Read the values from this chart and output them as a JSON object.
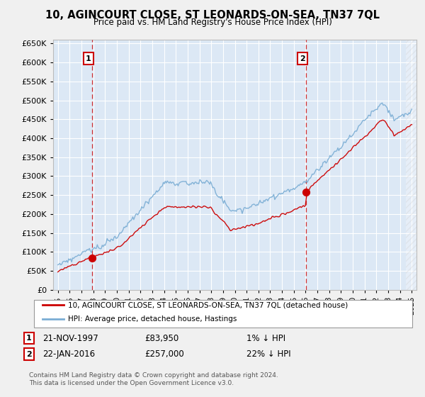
{
  "title": "10, AGINCOURT CLOSE, ST LEONARDS-ON-SEA, TN37 7QL",
  "subtitle": "Price paid vs. HM Land Registry's House Price Index (HPI)",
  "legend_line1": "10, AGINCOURT CLOSE, ST LEONARDS-ON-SEA, TN37 7QL (detached house)",
  "legend_line2": "HPI: Average price, detached house, Hastings",
  "annotation1": {
    "label": "1",
    "date": "21-NOV-1997",
    "price": 83950,
    "note": "1% ↓ HPI"
  },
  "annotation2": {
    "label": "2",
    "date": "22-JAN-2016",
    "price": 257000,
    "note": "22% ↓ HPI"
  },
  "sale1_x": 1997.9,
  "sale2_x": 2016.05,
  "sale1_price": 83950,
  "sale2_price": 257000,
  "price_color": "#cc0000",
  "hpi_color": "#7aadd4",
  "background_color": "#dce8f5",
  "grid_color": "#ffffff",
  "footer": "Contains HM Land Registry data © Crown copyright and database right 2024.\nThis data is licensed under the Open Government Licence v3.0.",
  "ylim": [
    0,
    660000
  ],
  "yticks": [
    0,
    50000,
    100000,
    150000,
    200000,
    250000,
    300000,
    350000,
    400000,
    450000,
    500000,
    550000,
    600000,
    650000
  ],
  "xlim_start": 1994.6,
  "xlim_end": 2025.4
}
